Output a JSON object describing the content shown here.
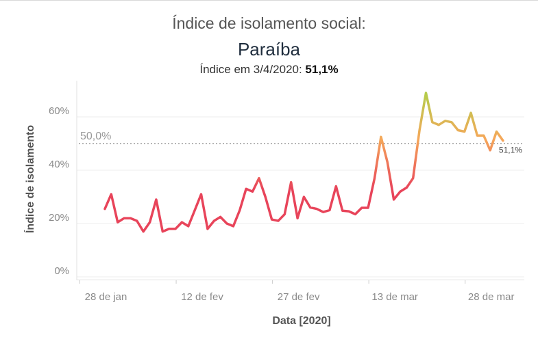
{
  "header": {
    "title": "Índice de isolamento social:",
    "state": "Paraíba",
    "subtitle_prefix": "Índice em 3/4/2020: ",
    "subtitle_value": "51,1%"
  },
  "chart_data": {
    "type": "line",
    "title": "Índice de isolamento social: Paraíba",
    "xlabel": "Data [2020]",
    "ylabel": "Índice de isolamento",
    "ylim": [
      0,
      70
    ],
    "yticks": [
      0,
      20,
      40,
      60
    ],
    "ytick_labels": [
      "0%",
      "20%",
      "40%",
      "60%"
    ],
    "xticks": [
      "28 de jan",
      "12 de fev",
      "27 de fev",
      "13 de mar",
      "28 de mar"
    ],
    "xtick_day_index": [
      0,
      15,
      30,
      45,
      60
    ],
    "x_start_label": "2020-01-28",
    "grid": true,
    "reference_line": {
      "value": 50.0,
      "label": "50,0%"
    },
    "end_label": "51,1%",
    "series": [
      {
        "name": "Índice de isolamento",
        "day_index": [
          4,
          5,
          6,
          7,
          8,
          9,
          10,
          11,
          12,
          13,
          14,
          15,
          16,
          17,
          18,
          19,
          20,
          21,
          22,
          23,
          24,
          25,
          26,
          27,
          28,
          29,
          30,
          31,
          32,
          33,
          34,
          35,
          36,
          37,
          38,
          39,
          40,
          41,
          42,
          43,
          44,
          45,
          46,
          47,
          48,
          49,
          50,
          51,
          52,
          53,
          54,
          55,
          56,
          57,
          58,
          59,
          60,
          61,
          62,
          63,
          64,
          65,
          66
        ],
        "values": [
          25.5,
          31,
          20.5,
          22,
          22,
          21,
          17,
          20.5,
          29,
          17,
          18,
          18,
          20.5,
          19,
          25,
          31,
          18,
          21,
          22.5,
          20,
          19,
          25,
          33,
          32,
          37,
          30,
          21.5,
          21,
          23.5,
          35.5,
          22,
          30,
          26,
          25.5,
          24.3,
          25,
          34,
          24.8,
          24.6,
          23.5,
          25.9,
          25.9,
          37,
          52.5,
          43,
          29,
          32,
          33.5,
          37,
          55,
          69,
          58,
          57,
          58.5,
          58,
          55,
          54.5,
          61.5,
          53,
          53,
          47.5,
          54.5,
          51.1
        ]
      }
    ],
    "color_scale": {
      "low": "#e8445a",
      "mid": "#f5a85a",
      "high": "#b0cf4a"
    }
  }
}
